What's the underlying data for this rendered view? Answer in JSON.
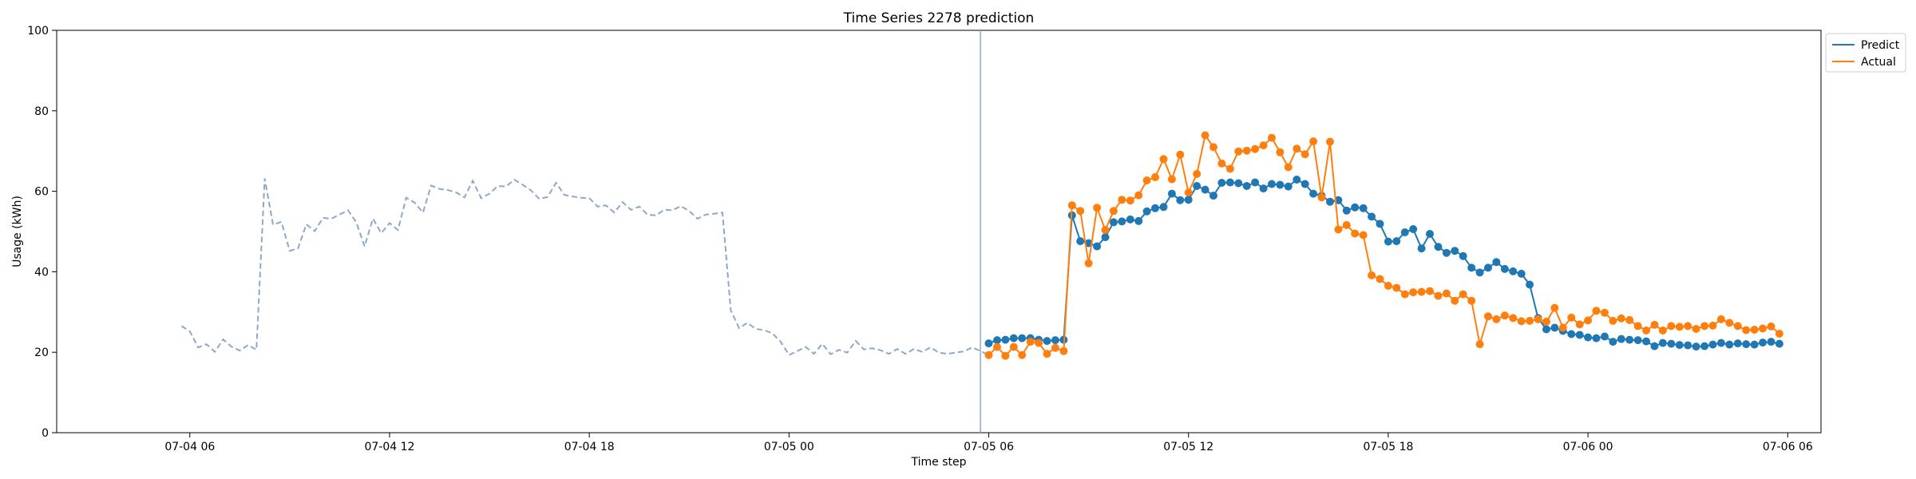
{
  "chart_data": {
    "type": "line",
    "title": "Time Series 2278 prediction",
    "xlabel": "Time step",
    "ylabel": "Usage (kWh)",
    "ylim": [
      0,
      100
    ],
    "yticks": [
      0,
      20,
      40,
      60,
      80,
      100
    ],
    "xlim": [
      "2025-07-04 02:00",
      "2025-07-06 07:00"
    ],
    "xticks": [
      "2025-07-04 06:00",
      "2025-07-04 12:00",
      "2025-07-04 18:00",
      "2025-07-05 00:00",
      "2025-07-05 06:00",
      "2025-07-05 12:00",
      "2025-07-05 18:00",
      "2025-07-06 00:00",
      "2025-07-06 06:00"
    ],
    "xtick_labels": [
      "07-04 06",
      "07-04 12",
      "07-04 18",
      "07-05 00",
      "07-05 06",
      "07-05 12",
      "07-05 18",
      "07-06 00",
      "07-06 06"
    ],
    "grid": false,
    "legend_position": "outside-top-right",
    "forecast_start": "2025-07-05 05:45",
    "history": {
      "start": "2025-07-04 05:45",
      "step_minutes": 15,
      "color": "#8fa8c8",
      "style": "dashed",
      "values": [
        26.5,
        25.2,
        21.2,
        22.0,
        20.1,
        23.2,
        21.4,
        20.4,
        21.8,
        20.6,
        63.2,
        51.7,
        52.4,
        45.2,
        45.8,
        51.8,
        50.1,
        53.4,
        53.2,
        54.2,
        55.3,
        52.3,
        46.3,
        53.2,
        49.6,
        52.1,
        50.4,
        58.4,
        57.2,
        54.7,
        61.4,
        60.6,
        60.3,
        59.7,
        58.5,
        62.6,
        58.3,
        59.4,
        61.3,
        61.2,
        62.9,
        61.6,
        60.2,
        58.1,
        58.6,
        62.1,
        59.1,
        58.7,
        58.4,
        58.3,
        56.2,
        56.5,
        54.7,
        57.3,
        55.4,
        56.2,
        54.2,
        54.0,
        55.4,
        55.3,
        56.3,
        55.1,
        53.2,
        54.2,
        54.4,
        54.7,
        30.4,
        26.0,
        27.3,
        25.8,
        25.5,
        24.7,
        22.6,
        19.3,
        20.3,
        21.3,
        19.6,
        22.1,
        19.5,
        20.6,
        19.9,
        22.8,
        20.7,
        21.0,
        20.5,
        19.6,
        20.8,
        19.6,
        20.8,
        20.1,
        21.2,
        19.9,
        19.6,
        19.9,
        20.2,
        21.2,
        20.3,
        19.3
      ]
    },
    "series": [
      {
        "name": "Predict",
        "color": "#1f77b4",
        "start": "2025-07-05 06:00",
        "step_minutes": 15,
        "values": [
          22.2,
          23.0,
          23.1,
          23.5,
          23.5,
          23.5,
          23.1,
          22.8,
          23.0,
          23.1,
          54.0,
          47.6,
          47.1,
          46.3,
          48.6,
          52.3,
          52.5,
          53.0,
          52.6,
          55.0,
          55.8,
          56.1,
          59.4,
          57.8,
          57.9,
          61.3,
          60.4,
          58.9,
          62.1,
          62.2,
          62.0,
          61.3,
          62.2,
          60.7,
          61.8,
          61.6,
          61.2,
          62.9,
          61.8,
          59.4,
          58.9,
          57.4,
          57.8,
          55.2,
          56.0,
          55.8,
          53.7,
          51.9,
          47.5,
          47.6,
          49.8,
          50.6,
          45.8,
          49.4,
          46.2,
          44.7,
          45.2,
          43.9,
          41.0,
          39.8,
          41.0,
          42.4,
          40.7,
          40.1,
          39.5,
          36.8,
          28.5,
          25.7,
          26.1,
          25.3,
          24.5,
          24.3,
          23.7,
          23.5,
          23.9,
          22.6,
          23.3,
          23.1,
          23.0,
          22.7,
          21.5,
          22.3,
          22.1,
          21.8,
          21.7,
          21.4,
          21.5,
          21.9,
          22.3,
          21.9,
          22.2,
          22.0,
          21.9,
          22.4,
          22.6,
          22.1
        ]
      },
      {
        "name": "Actual",
        "color": "#ff7f0e",
        "start": "2025-07-05 06:00",
        "step_minutes": 15,
        "values": [
          19.3,
          21.3,
          19.1,
          21.3,
          19.3,
          22.6,
          22.3,
          19.6,
          21.1,
          20.3,
          56.5,
          55.1,
          42.1,
          55.9,
          50.4,
          55.1,
          57.9,
          57.7,
          59.0,
          62.7,
          63.5,
          68.0,
          63.0,
          69.1,
          59.7,
          64.3,
          73.9,
          71.0,
          66.9,
          65.6,
          69.9,
          70.1,
          70.5,
          71.4,
          73.3,
          69.7,
          66.0,
          70.6,
          69.2,
          72.4,
          58.5,
          72.3,
          50.5,
          51.6,
          49.5,
          49.1,
          39.1,
          38.2,
          36.5,
          36.0,
          34.4,
          34.9,
          35.0,
          35.2,
          34.0,
          34.6,
          32.8,
          34.4,
          32.8,
          22.0,
          28.9,
          28.2,
          29.1,
          28.5,
          27.7,
          27.8,
          28.2,
          27.6,
          31.0,
          26.1,
          28.6,
          26.9,
          27.9,
          30.3,
          29.8,
          27.8,
          28.4,
          28.0,
          26.5,
          25.4,
          26.8,
          25.4,
          26.5,
          26.3,
          26.5,
          25.8,
          26.5,
          26.6,
          28.2,
          27.3,
          26.5,
          25.5,
          25.6,
          25.9,
          26.4,
          24.6
        ]
      }
    ]
  }
}
